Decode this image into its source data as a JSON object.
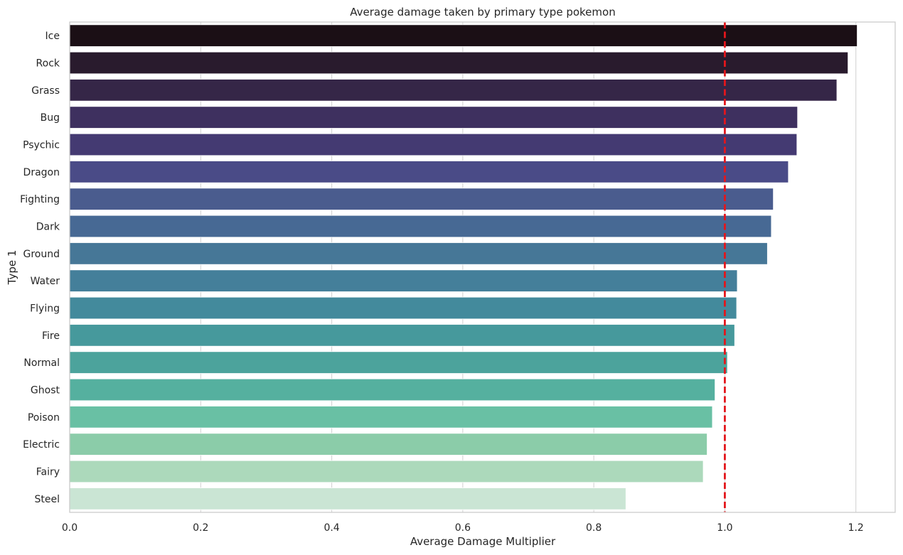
{
  "chart_data": {
    "type": "bar",
    "orientation": "horizontal",
    "title": "Average damage taken by primary type pokemon",
    "xlabel": "Average Damage Multiplier",
    "ylabel": "Type 1",
    "xlim": [
      0,
      1.26
    ],
    "xticks": [
      0.0,
      0.2,
      0.4,
      0.6,
      0.8,
      1.0,
      1.2
    ],
    "xtick_labels": [
      "0.0",
      "0.2",
      "0.4",
      "0.6",
      "0.8",
      "1.0",
      "1.2"
    ],
    "grid": "vertical",
    "legend": "none",
    "categories": [
      "Ice",
      "Rock",
      "Grass",
      "Bug",
      "Psychic",
      "Dragon",
      "Fighting",
      "Dark",
      "Ground",
      "Water",
      "Flying",
      "Fire",
      "Normal",
      "Ghost",
      "Poison",
      "Electric",
      "Fairy",
      "Steel"
    ],
    "values": [
      1.202,
      1.188,
      1.171,
      1.111,
      1.11,
      1.097,
      1.074,
      1.071,
      1.065,
      1.019,
      1.018,
      1.015,
      1.004,
      0.985,
      0.981,
      0.973,
      0.967,
      0.849
    ],
    "bar_colors": [
      "#1b0f15",
      "#291b2d",
      "#352647",
      "#3e305f",
      "#443a72",
      "#4a4b87",
      "#4a5c8e",
      "#476994",
      "#467797",
      "#447f9a",
      "#438a9c",
      "#46999c",
      "#4ca39c",
      "#55b09f",
      "#69c0a4",
      "#8bcca9",
      "#acd9bb",
      "#cae5d4"
    ],
    "reference_line": {
      "value": 1.0,
      "color": "#e3161c",
      "style": "dashed"
    }
  }
}
